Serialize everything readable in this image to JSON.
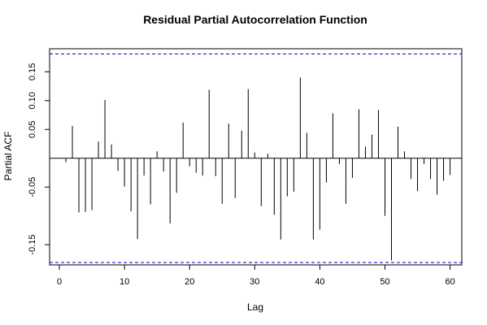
{
  "chart_data": {
    "type": "bar",
    "title": "Residual Partial Autocorrelation Function",
    "xlabel": "Lag",
    "ylabel": "Partial ACF",
    "xlim": [
      0,
      60
    ],
    "ylim": [
      -0.175,
      0.18
    ],
    "x_ticks": [
      0,
      10,
      20,
      30,
      40,
      50,
      60
    ],
    "y_ticks": [
      -0.15,
      -0.05,
      0.05,
      0.1,
      0.15
    ],
    "x_tick_labels": [
      "0",
      "10",
      "20",
      "30",
      "40",
      "50",
      "60"
    ],
    "y_tick_labels": [
      "-0.15",
      "-0.05",
      "0.05",
      "0.10",
      "0.15"
    ],
    "confidence_bound": 0.181,
    "confidence_line_color": "#0000cc",
    "lags": [
      1,
      2,
      3,
      4,
      5,
      6,
      7,
      8,
      9,
      10,
      11,
      12,
      13,
      14,
      15,
      16,
      17,
      18,
      19,
      20,
      21,
      22,
      23,
      24,
      25,
      26,
      27,
      28,
      29,
      30,
      31,
      32,
      33,
      34,
      35,
      36,
      37,
      38,
      39,
      40,
      41,
      42,
      43,
      44,
      45,
      46,
      47,
      48,
      49,
      50,
      51,
      52,
      53,
      54,
      55,
      56,
      57,
      58,
      59,
      60
    ],
    "values": [
      -0.007,
      0.056,
      -0.094,
      -0.093,
      -0.09,
      0.029,
      0.101,
      0.024,
      -0.022,
      -0.049,
      -0.092,
      -0.14,
      -0.03,
      -0.08,
      0.012,
      -0.023,
      -0.113,
      -0.06,
      0.062,
      -0.014,
      -0.025,
      -0.03,
      0.119,
      -0.031,
      -0.079,
      0.06,
      -0.069,
      0.048,
      0.12,
      0.01,
      -0.083,
      0.008,
      -0.098,
      -0.141,
      -0.066,
      -0.058,
      0.14,
      0.044,
      -0.141,
      -0.124,
      -0.042,
      0.078,
      -0.01,
      -0.079,
      -0.034,
      0.085,
      0.02,
      0.041,
      0.084,
      -0.1,
      -0.177,
      0.055,
      0.012,
      -0.036,
      -0.057,
      -0.01,
      -0.036,
      -0.063,
      -0.039,
      -0.029
    ]
  }
}
